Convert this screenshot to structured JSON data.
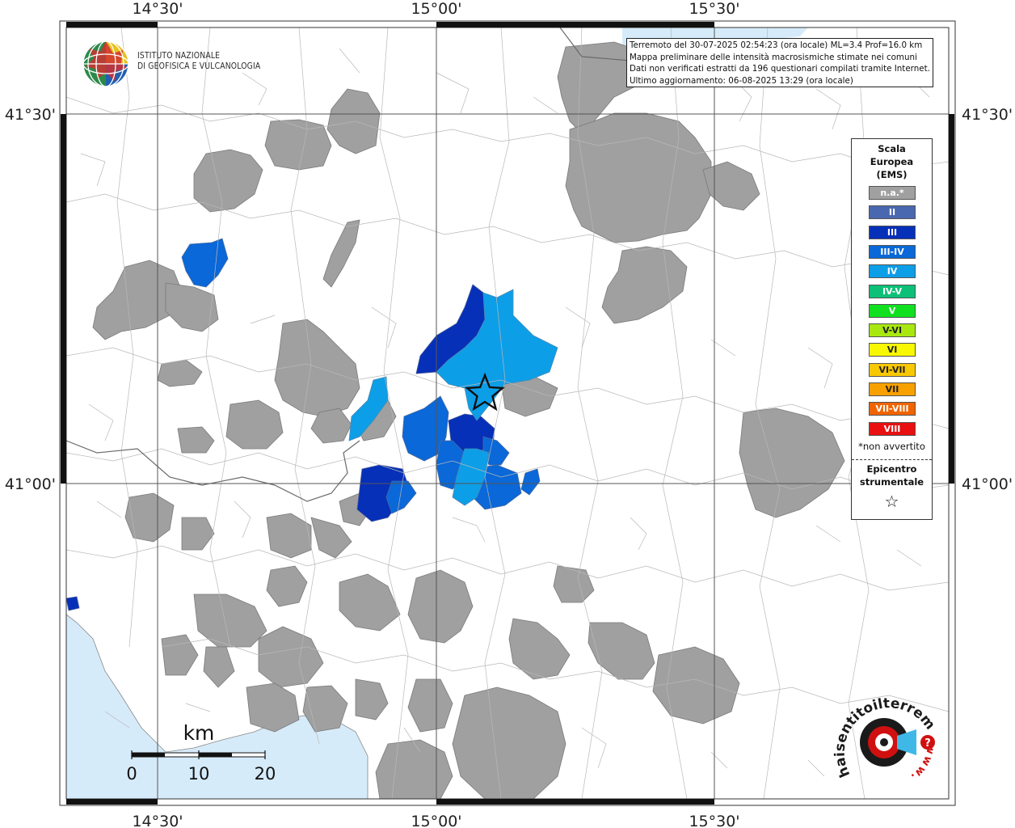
{
  "logo": {
    "line1": "ISTITUTO NAZIONALE",
    "line2": "DI GEOFISICA E VULCANOLOGIA"
  },
  "info_box": {
    "line1": "Terremoto del 30-07-2025 02:54:23 (ora locale) ML=3.4 Prof=16.0 km",
    "line2": "Mappa preliminare delle intensità macrosismiche stimate nei comuni",
    "line3": "Dati non verificati estratti da 196 questionari compilati tramite Internet.",
    "line4": "Ultimo aggiornamento: 06-08-2025 13:29 (ora locale)"
  },
  "axes": {
    "top": [
      "14°30'",
      "15°00'",
      "15°30'"
    ],
    "bottom": [
      "14°30'",
      "15°00'",
      "15°30'"
    ],
    "left": [
      "41°30'",
      "41°00'"
    ],
    "right": [
      "41°30'",
      "41°00'"
    ]
  },
  "legend": {
    "title_line1": "Scala",
    "title_line2": "Europea",
    "title_line3": "(EMS)",
    "items": [
      {
        "label": "n.a.*",
        "color": "#a0a0a0"
      },
      {
        "label": "II",
        "color": "#4a68b0"
      },
      {
        "label": "III",
        "color": "#0630b8"
      },
      {
        "label": "III-IV",
        "color": "#0a68d8"
      },
      {
        "label": "IV",
        "color": "#0d9ee8"
      },
      {
        "label": "IV-V",
        "color": "#0cc078"
      },
      {
        "label": "V",
        "color": "#10e020"
      },
      {
        "label": "V-VI",
        "color": "#a8e810"
      },
      {
        "label": "VI",
        "color": "#f8f800"
      },
      {
        "label": "VI-VII",
        "color": "#f8c800"
      },
      {
        "label": "VII",
        "color": "#f8a000"
      },
      {
        "label": "VII-VIII",
        "color": "#f06400"
      },
      {
        "label": "VIII",
        "color": "#e81010"
      }
    ],
    "note": "*non avvertito",
    "epicentro_line1": "Epicentro",
    "epicentro_line2": "strumentale",
    "star": "☆"
  },
  "scale_bar": {
    "unit": "km",
    "ticks": [
      "0",
      "10",
      "20"
    ]
  },
  "watermark": {
    "text": "haisentitoilterremoto.it",
    "url_arc": "www.",
    "icon": "haisentito-logo-icon"
  },
  "colors": {
    "sea": "#d6ebfa",
    "not_available": "#a0a0a0",
    "intensity_III": "#0630b8",
    "intensity_III_IV": "#0a68d8",
    "intensity_IV": "#0d9ee8"
  }
}
